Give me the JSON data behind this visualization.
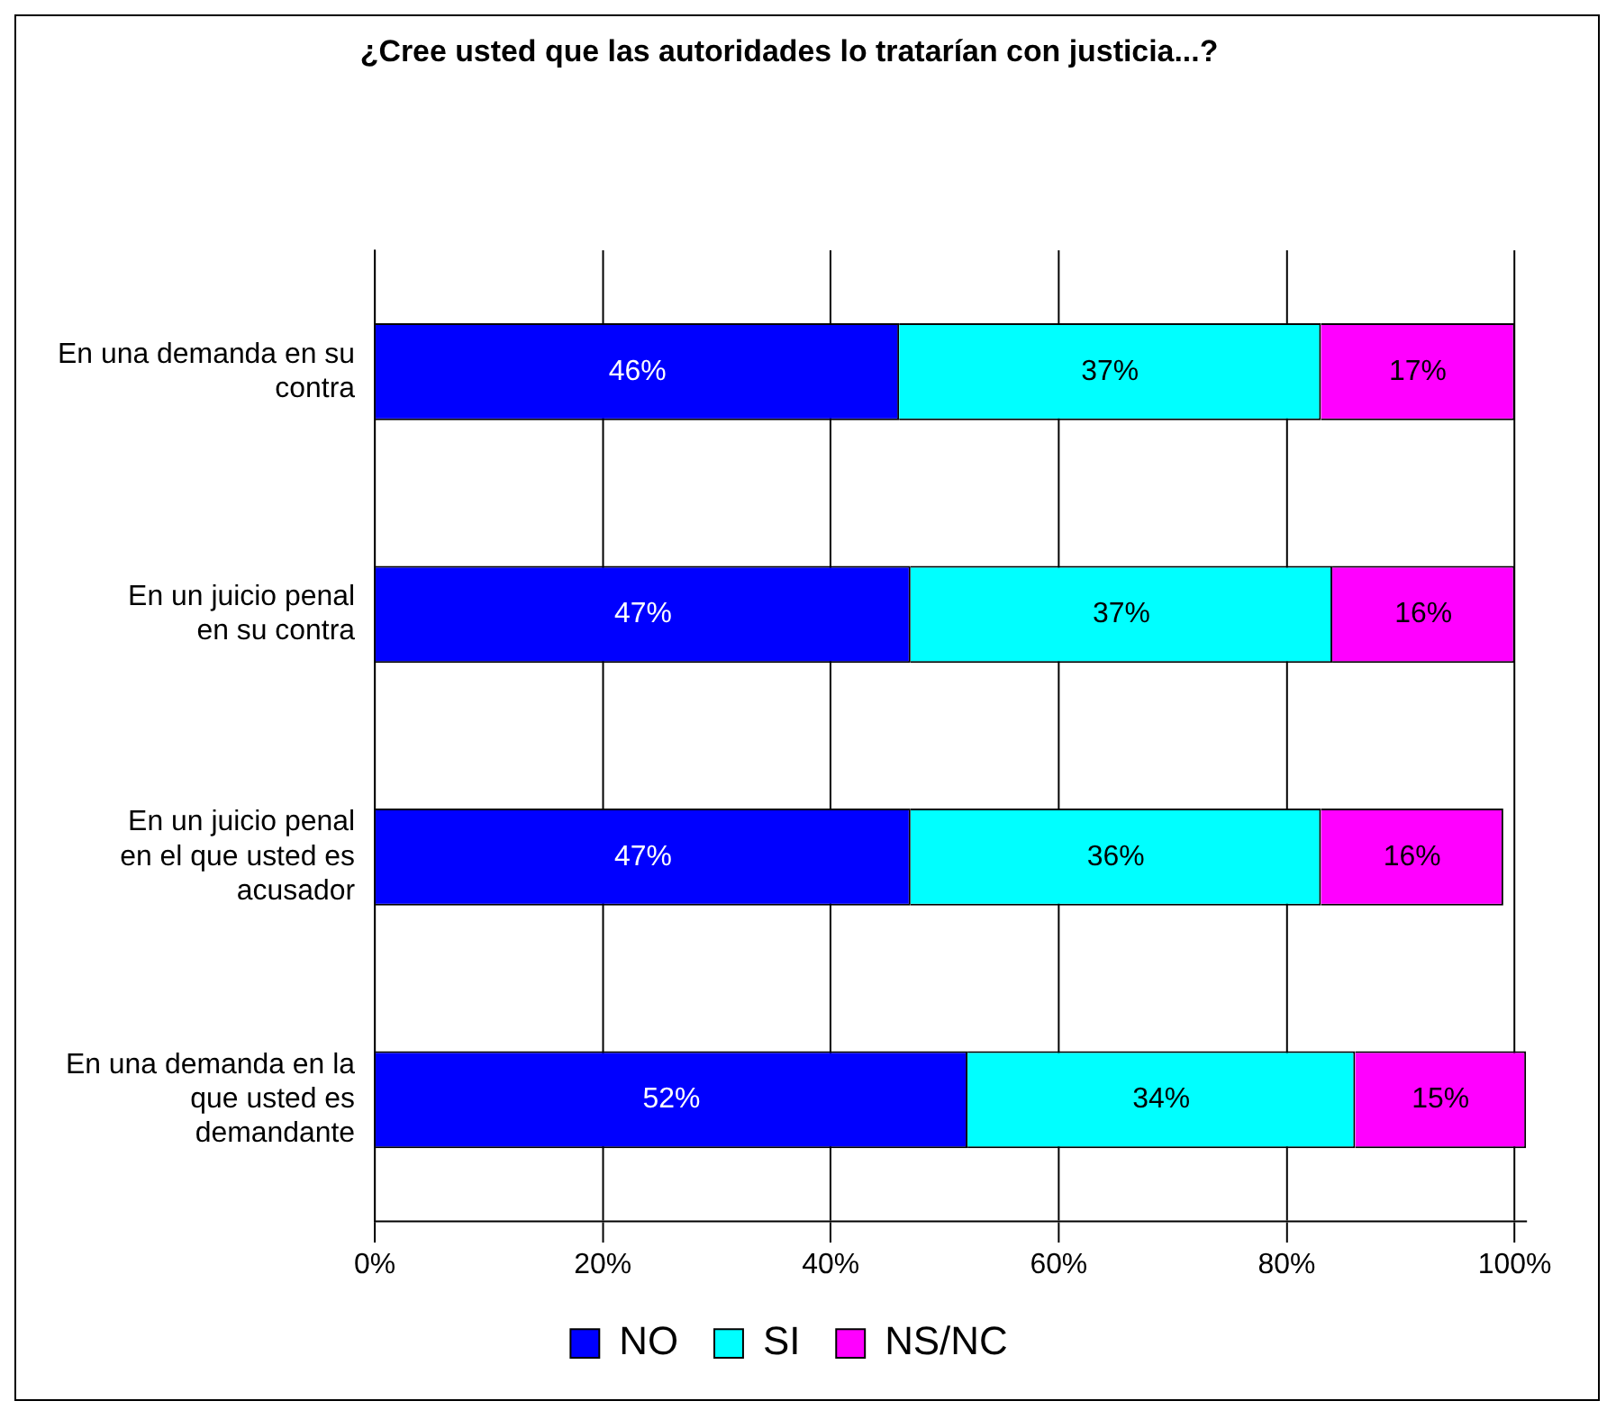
{
  "chart_data": {
    "type": "bar",
    "orientation": "horizontal",
    "stacked": true,
    "title": "¿Cree usted que las autoridades lo tratarían con justicia...?",
    "categories": [
      "En una demanda en su contra",
      "En un juicio penal en su contra",
      "En un juicio penal en el que usted es acusador",
      "En una demanda en la que usted es demandante"
    ],
    "series": [
      {
        "name": "NO",
        "color": "#0000ff",
        "values": [
          46,
          47,
          47,
          52
        ],
        "value_labels": [
          "46%",
          "47%",
          "47%",
          "52%"
        ]
      },
      {
        "name": "SI",
        "color": "#00ffff",
        "values": [
          37,
          37,
          36,
          34
        ],
        "value_labels": [
          "37%",
          "37%",
          "36%",
          "34%"
        ]
      },
      {
        "name": "NS/NC",
        "color": "#ff00ff",
        "values": [
          17,
          16,
          16,
          15
        ],
        "value_labels": [
          "17%",
          "16%",
          "16%",
          "15%"
        ]
      }
    ],
    "xlim": [
      0,
      101
    ],
    "xticks": [
      {
        "value": 0,
        "label": "0%"
      },
      {
        "value": 20,
        "label": "20%"
      },
      {
        "value": 40,
        "label": "40%"
      },
      {
        "value": 60,
        "label": "60%"
      },
      {
        "value": 80,
        "label": "80%"
      },
      {
        "value": 100,
        "label": "100%"
      }
    ],
    "grid": "x",
    "legend": "bottom"
  }
}
